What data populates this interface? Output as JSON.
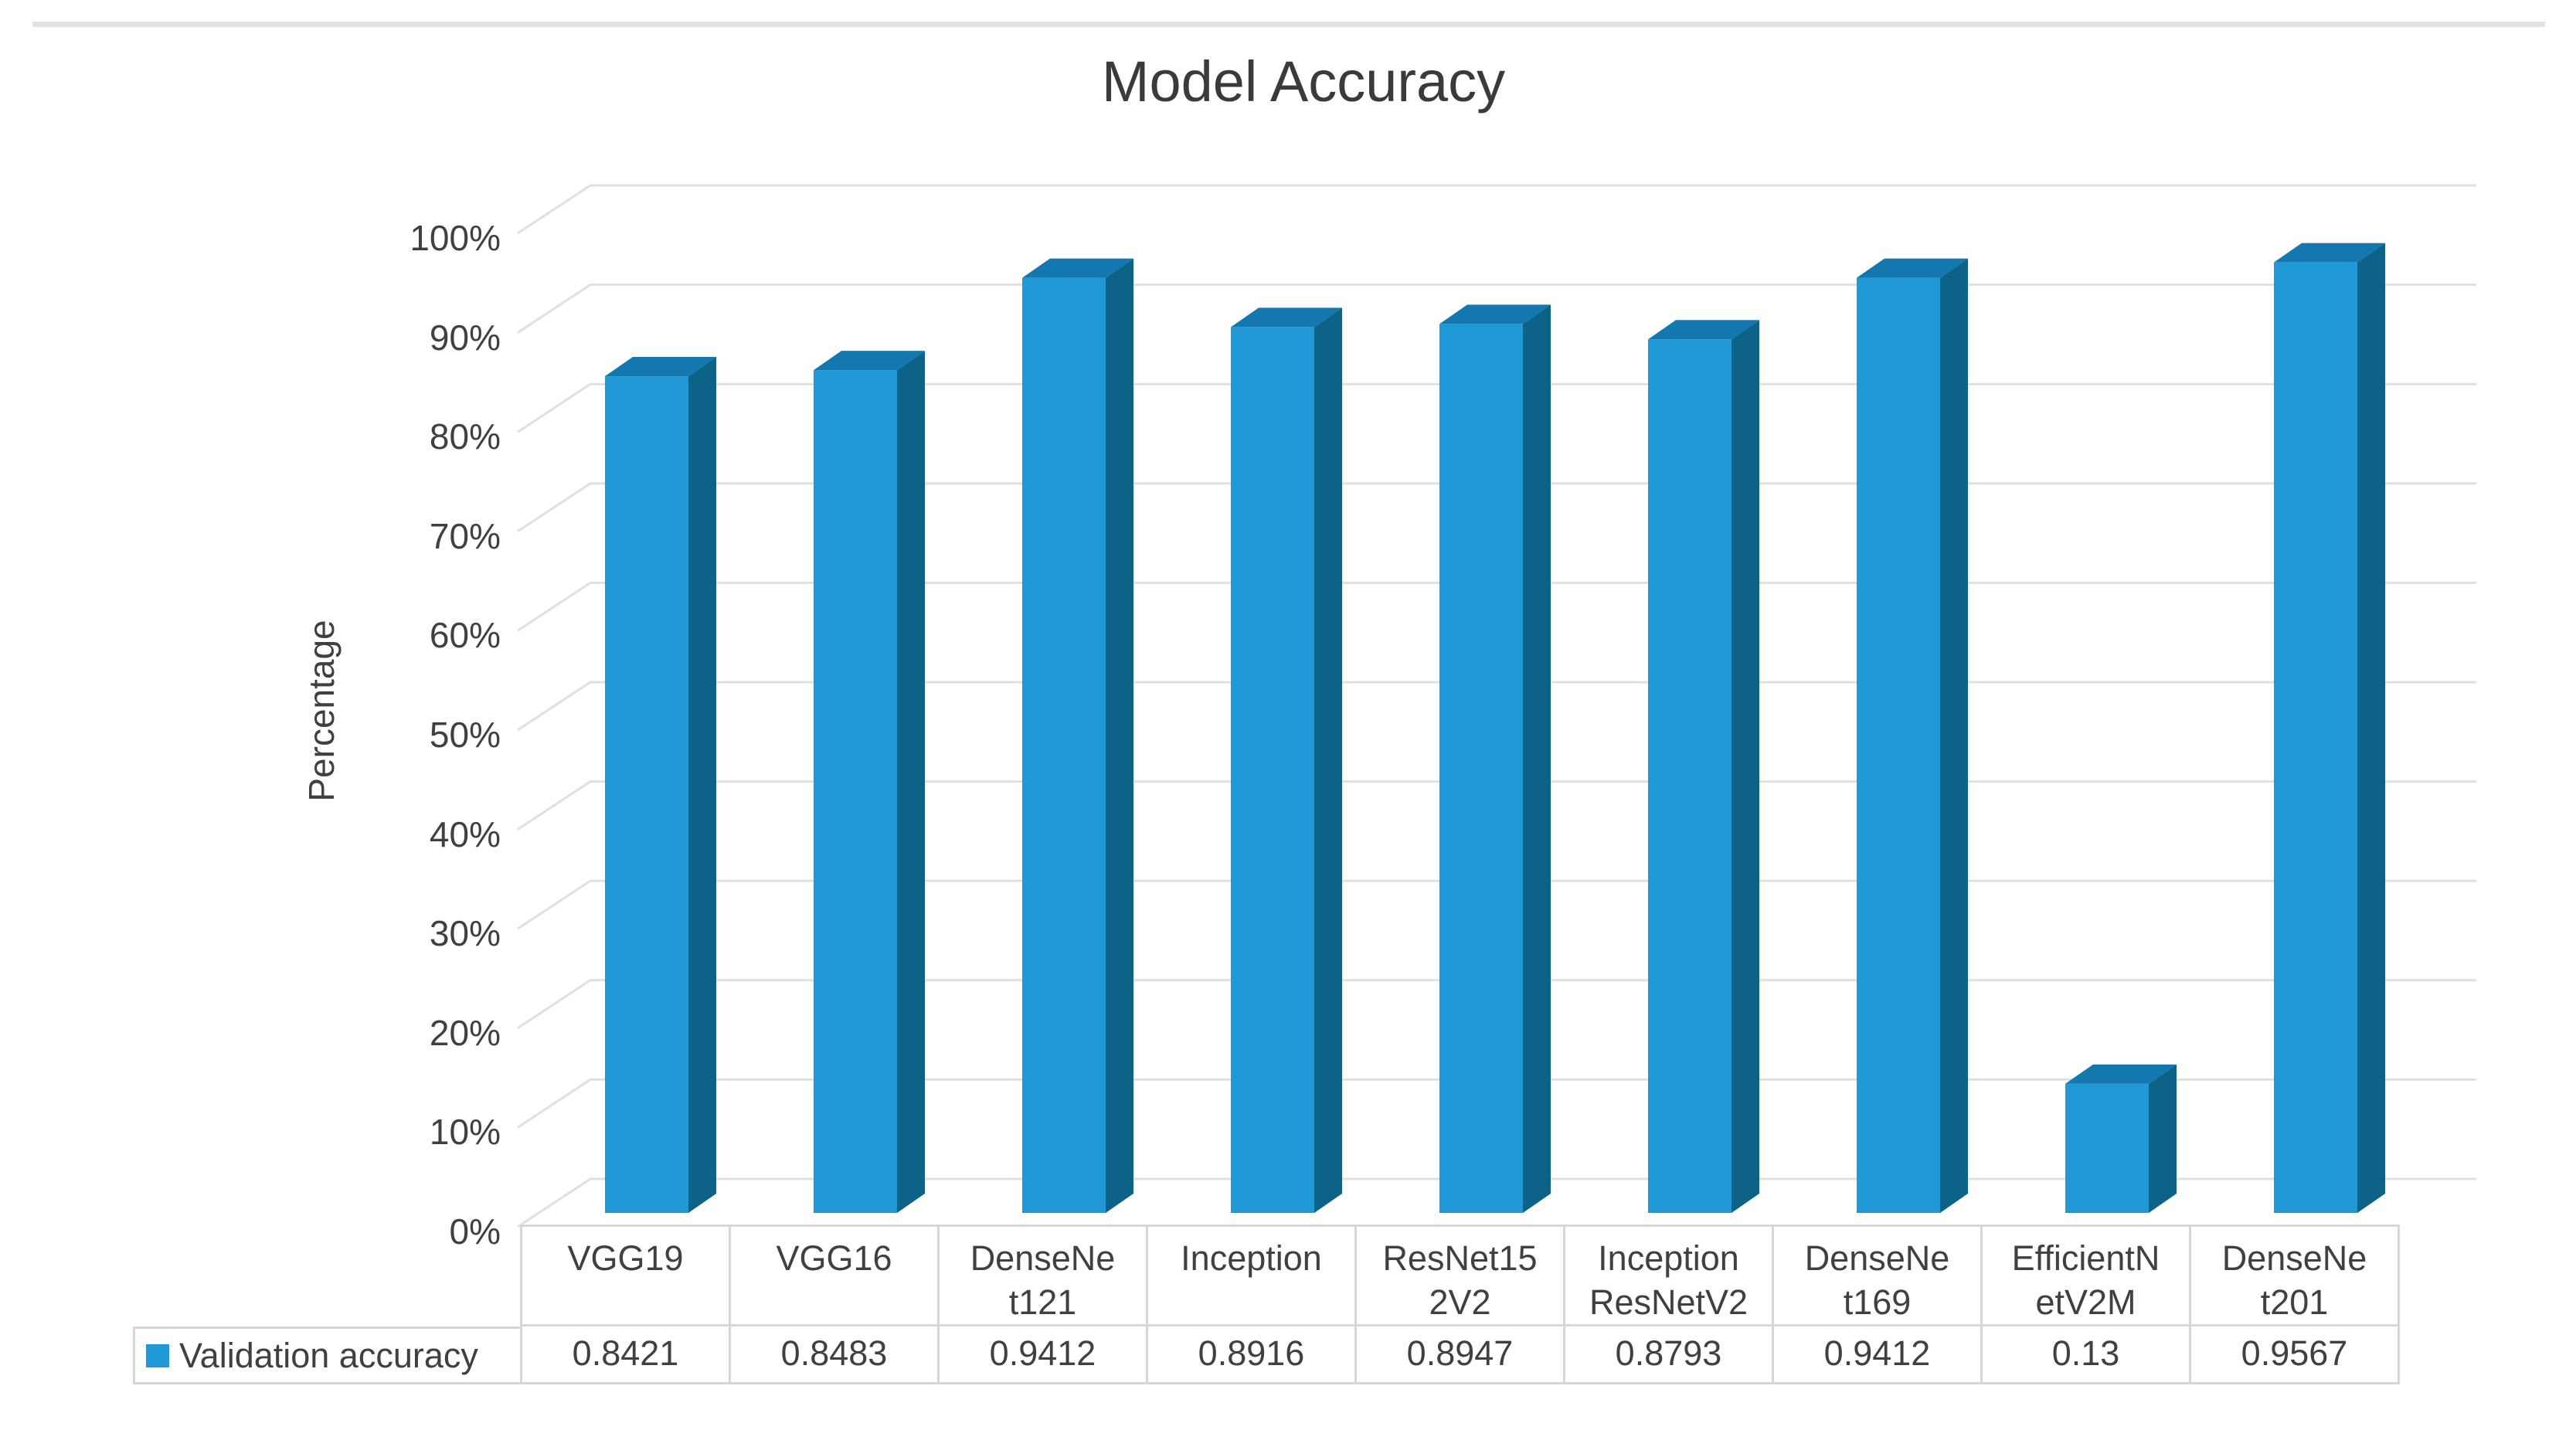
{
  "chart_data": {
    "type": "bar",
    "style": "3d",
    "title": "Model Accuracy",
    "xlabel": "",
    "ylabel": "Percentage",
    "ylim": [
      0,
      1
    ],
    "y_tick_labels_top_down": [
      "100%",
      "90%",
      "80%",
      "70%",
      "60%",
      "50%",
      "40%",
      "30%",
      "20%",
      "10%",
      "0%"
    ],
    "grid": true,
    "legend_position": "bottom-table",
    "categories": [
      "VGG19",
      "VGG16",
      "DenseNet121",
      "Inception",
      "ResNet152V2",
      "InceptionResNetV2",
      "DenseNet169",
      "EfficientNetV2M",
      "DenseNet201"
    ],
    "series": [
      {
        "name": "Validation accuracy",
        "values": [
          0.8421,
          0.8483,
          0.9412,
          0.8916,
          0.8947,
          0.8793,
          0.9412,
          0.13,
          0.9567
        ]
      }
    ]
  },
  "table": {
    "category_label_lines": [
      [
        "VGG19"
      ],
      [
        "VGG16"
      ],
      [
        "DenseNe",
        "t121"
      ],
      [
        "Inception"
      ],
      [
        "ResNet15",
        "2V2"
      ],
      [
        "Inception",
        "ResNetV2"
      ],
      [
        "DenseNe",
        "t169"
      ],
      [
        "EfficientN",
        "etV2M"
      ],
      [
        "DenseNe",
        "t201"
      ]
    ],
    "value_labels": [
      "0.8421",
      "0.8483",
      "0.9412",
      "0.8916",
      "0.8947",
      "0.8793",
      "0.9412",
      "0.13",
      "0.9567"
    ]
  },
  "colors": {
    "bar_front": "#2199d7",
    "bar_side": "#0d6387",
    "bar_top": "#1478b0",
    "gridline": "#e0e0e0",
    "table_border": "#d6d6d6",
    "text": "#404040",
    "legend_swatch": "#2199d7"
  }
}
